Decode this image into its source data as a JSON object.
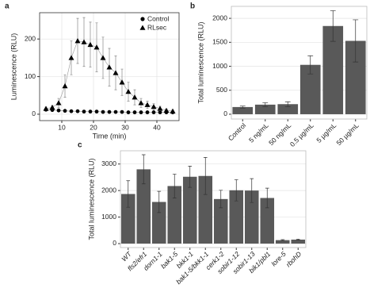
{
  "chart_data": [
    {
      "type": "line",
      "panel_label": "a",
      "x_label": "Time (min)",
      "y_label": "Luminescence (RLU)",
      "x": [
        5,
        7,
        9,
        11,
        13,
        15,
        17,
        19,
        21,
        23,
        25,
        27,
        29,
        31,
        33,
        35,
        37,
        39,
        41,
        43,
        45
      ],
      "series": [
        {
          "name": "Control",
          "marker": "circle",
          "color": "#000000",
          "values": [
            12,
            11,
            10,
            9,
            8,
            8,
            7,
            7,
            7,
            6,
            6,
            6,
            6,
            5,
            5,
            5,
            5,
            5,
            5,
            5,
            5
          ],
          "errors": [
            3,
            3,
            3,
            2,
            2,
            2,
            2,
            2,
            2,
            2,
            2,
            2,
            2,
            2,
            2,
            2,
            2,
            2,
            2,
            2,
            2
          ]
        },
        {
          "name": "RLsec",
          "marker": "triangle",
          "color": "#000000",
          "values": [
            15,
            18,
            30,
            75,
            150,
            195,
            192,
            185,
            178,
            150,
            125,
            110,
            85,
            60,
            45,
            30,
            25,
            20,
            15,
            10,
            8
          ],
          "errors": [
            4,
            5,
            12,
            30,
            45,
            60,
            65,
            60,
            65,
            55,
            50,
            45,
            35,
            25,
            20,
            12,
            10,
            8,
            6,
            4,
            3
          ]
        }
      ],
      "xlim": [
        3,
        47
      ],
      "xticks": [
        10,
        20,
        30,
        40
      ],
      "ylim": [
        -17,
        270
      ],
      "yticks": [
        0,
        100,
        200
      ],
      "grid": true,
      "legend": "top-right"
    },
    {
      "type": "bar",
      "panel_label": "b",
      "y_label": "Total luminescence (RLU)",
      "color": "#595959",
      "categories": [
        "Control",
        "5 ng/mL",
        "50 ng/mL",
        "0.5 µg/mL",
        "5 µg/mL",
        "50 µg/mL"
      ],
      "values": [
        150,
        200,
        210,
        1030,
        1840,
        1530
      ],
      "errors": [
        20,
        40,
        50,
        190,
        320,
        440
      ],
      "ylim": [
        -100,
        2250
      ],
      "yticks": [
        0,
        500,
        1000,
        1500,
        2000
      ],
      "grid": true
    },
    {
      "type": "bar",
      "panel_label": "c",
      "y_label": "Total luminescence (RLU)",
      "color": "#595959",
      "categories": [
        "WT",
        "fls2/efr1",
        "dorn1-1",
        "bak1-5",
        "bkk1-1",
        "bak1-5/bkk1-1",
        "cerk1-2",
        "sobir1-12",
        "sobir1-13",
        "bik1/pbl1",
        "lore-5",
        "rbohD"
      ],
      "values": [
        1870,
        2800,
        1570,
        2170,
        2520,
        2550,
        1680,
        2010,
        2000,
        1720,
        130,
        150
      ],
      "errors": [
        500,
        550,
        400,
        450,
        400,
        700,
        330,
        400,
        450,
        370,
        20,
        20
      ],
      "ylim": [
        -150,
        3500
      ],
      "yticks": [
        0,
        1000,
        2000,
        3000
      ],
      "grid": true
    }
  ]
}
